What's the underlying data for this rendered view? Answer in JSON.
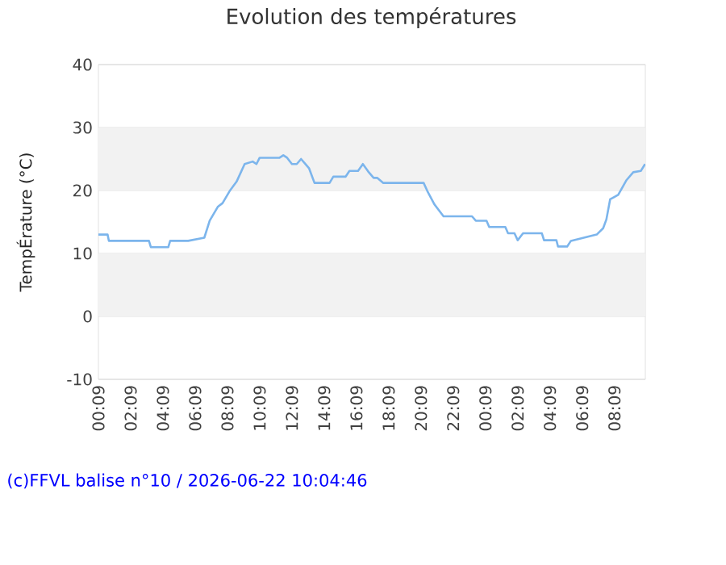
{
  "chart_data": {
    "type": "line",
    "title": "Evolution des températures",
    "ylabel": "TempÉrature (°C)",
    "x": [
      "2026-06-21T00:09",
      "2026-06-21T00:43",
      "2026-06-21T00:48",
      "2026-06-21T03:17",
      "2026-06-21T03:24",
      "2026-06-21T04:29",
      "2026-06-21T04:36",
      "2026-06-21T05:43",
      "2026-06-21T06:43",
      "2026-06-21T07:03",
      "2026-06-21T07:33",
      "2026-06-21T07:51",
      "2026-06-21T08:17",
      "2026-06-21T08:43",
      "2026-06-21T09:13",
      "2026-06-21T09:43",
      "2026-06-21T09:57",
      "2026-06-21T10:09",
      "2026-06-21T11:23",
      "2026-06-21T11:37",
      "2026-06-21T11:51",
      "2026-06-21T12:09",
      "2026-06-21T12:27",
      "2026-06-21T12:43",
      "2026-06-21T12:57",
      "2026-06-21T13:13",
      "2026-06-21T13:33",
      "2026-06-21T14:29",
      "2026-06-21T14:43",
      "2026-06-21T15:29",
      "2026-06-21T15:43",
      "2026-06-21T16:15",
      "2026-06-21T16:33",
      "2026-06-21T16:53",
      "2026-06-21T17:13",
      "2026-06-21T17:27",
      "2026-06-21T17:49",
      "2026-06-21T20:19",
      "2026-06-21T20:33",
      "2026-06-21T20:59",
      "2026-06-21T21:33",
      "2026-06-21T23:19",
      "2026-06-21T23:33",
      "2026-06-22T00:13",
      "2026-06-22T00:23",
      "2026-06-22T01:23",
      "2026-06-22T01:33",
      "2026-06-22T01:57",
      "2026-06-22T02:09",
      "2026-06-22T02:29",
      "2026-06-22T03:39",
      "2026-06-22T03:47",
      "2026-06-22T04:33",
      "2026-06-22T04:39",
      "2026-06-22T05:13",
      "2026-06-22T05:27",
      "2026-06-22T07:03",
      "2026-06-22T07:27",
      "2026-06-22T07:39",
      "2026-06-22T07:53",
      "2026-06-22T08:23",
      "2026-06-22T08:53",
      "2026-06-22T09:19",
      "2026-06-22T09:47",
      "2026-06-22T10:03"
    ],
    "series": [
      {
        "color": "#7cb5ec",
        "values": [
          13,
          13,
          12,
          12,
          11,
          11,
          12,
          12,
          12.5,
          15.2,
          17.4,
          18,
          19.9,
          21.4,
          24.2,
          24.6,
          24.2,
          25.2,
          25.2,
          25.6,
          25.2,
          24.2,
          24.2,
          25,
          24.3,
          23.5,
          21.2,
          21.2,
          22.2,
          22.2,
          23.1,
          23.1,
          24.2,
          23,
          22,
          22,
          21.2,
          21.2,
          19.9,
          17.8,
          15.9,
          15.9,
          15.2,
          15.2,
          14.2,
          14.2,
          13.2,
          13.2,
          12.1,
          13.2,
          13.2,
          12.1,
          12.1,
          11.1,
          11.1,
          12,
          13,
          14,
          15.4,
          18.6,
          19.3,
          21.6,
          22.9,
          23.1,
          24.2
        ]
      }
    ],
    "xlim": [
      "2026-06-21T00:09",
      "2026-06-22T10:04"
    ],
    "ylim": [
      -10,
      40
    ],
    "yticks": [
      -10,
      0,
      10,
      20,
      30,
      40
    ],
    "xticks": [
      {
        "value": "2026-06-21T00:09",
        "label": "00:09"
      },
      {
        "value": "2026-06-21T02:09",
        "label": "02:09"
      },
      {
        "value": "2026-06-21T04:09",
        "label": "04:09"
      },
      {
        "value": "2026-06-21T06:09",
        "label": "06:09"
      },
      {
        "value": "2026-06-21T08:09",
        "label": "08:09"
      },
      {
        "value": "2026-06-21T10:09",
        "label": "10:09"
      },
      {
        "value": "2026-06-21T12:09",
        "label": "12:09"
      },
      {
        "value": "2026-06-21T14:09",
        "label": "14:09"
      },
      {
        "value": "2026-06-21T16:09",
        "label": "16:09"
      },
      {
        "value": "2026-06-21T18:09",
        "label": "18:09"
      },
      {
        "value": "2026-06-21T20:09",
        "label": "20:09"
      },
      {
        "value": "2026-06-21T22:09",
        "label": "22:09"
      },
      {
        "value": "2026-06-22T00:09",
        "label": "00:09"
      },
      {
        "value": "2026-06-22T02:09",
        "label": "02:09"
      },
      {
        "value": "2026-06-22T04:09",
        "label": "04:09"
      },
      {
        "value": "2026-06-22T06:09",
        "label": "06:09"
      },
      {
        "value": "2026-06-22T08:09",
        "label": "08:09"
      }
    ],
    "bands": [
      {
        "axis": "y",
        "from": 0,
        "to": 10,
        "color": "#f2f2f2"
      },
      {
        "axis": "y",
        "from": 20,
        "to": 30,
        "color": "#f2f2f2"
      }
    ],
    "grid": "y",
    "annotations": [
      "(c)FFVL balise n°10 / 2026-06-22 10:04:46"
    ]
  }
}
